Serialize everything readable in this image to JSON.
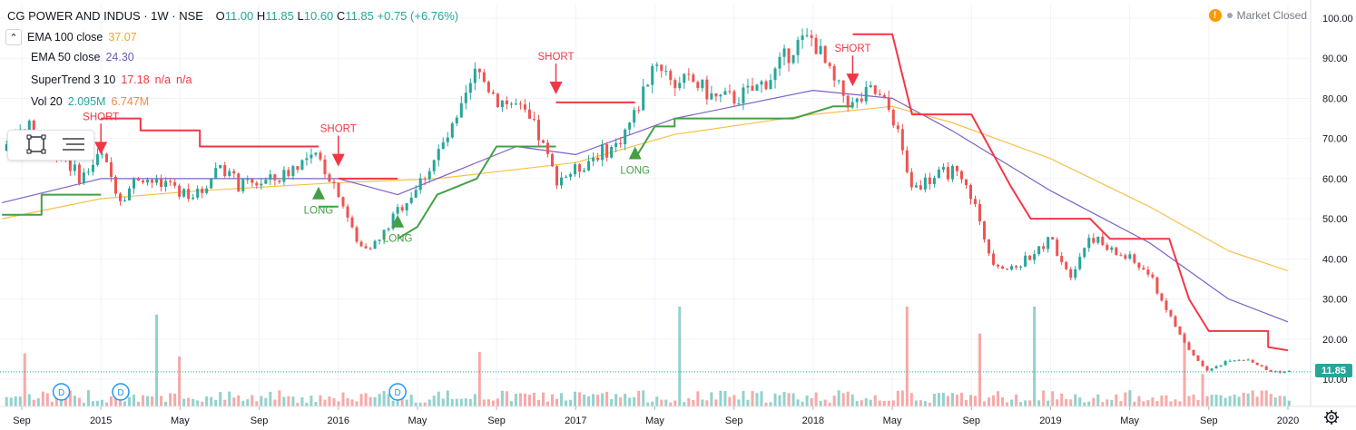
{
  "header": {
    "symbol": "CG POWER AND INDUS · 1W · NSE",
    "o_label": "O",
    "o": "11.00",
    "h_label": "H",
    "h": "11.85",
    "l_label": "L",
    "l": "10.60",
    "c_label": "C",
    "c": "11.85",
    "change": "+0.75 (+6.76%)"
  },
  "indicators": [
    {
      "name": "EMA 100 close",
      "values": [
        "37.07"
      ],
      "color": "#f5b731"
    },
    {
      "name": "EMA 50 close",
      "values": [
        "24.30"
      ],
      "color": "#6e5abf"
    },
    {
      "name": "SuperTrend 3 10",
      "values": [
        "17.18",
        "n/a",
        "n/a"
      ],
      "color": "#f23645"
    },
    {
      "name": "Vol 20",
      "values": [
        "2.095M",
        "6.747M"
      ],
      "color": "#26a69a",
      "color2": "#ef8b46"
    }
  ],
  "market_status": "Market Closed",
  "collapse_icon": "chevron-up-icon",
  "tool_icons": [
    "select-rectangle-icon",
    "object-tree-icon"
  ],
  "settings_icon": "gear-icon",
  "colors": {
    "up": "#26a69a",
    "down": "#ef5350",
    "st_up": "#43a047",
    "st_down": "#f23645",
    "ema100": "#f7c14a",
    "ema50": "#7b61c9"
  },
  "chart_data": {
    "type": "candlestick",
    "title": "",
    "last_price": "11.85",
    "y_ticks": [
      "10.00",
      "20.00",
      "30.00",
      "40.00",
      "50.00",
      "60.00",
      "70.00",
      "80.00",
      "90.00",
      "100.00"
    ],
    "ylim": [
      5,
      103
    ],
    "x_ticks": [
      "Sep",
      "2015",
      "May",
      "Sep",
      "2016",
      "May",
      "Sep",
      "2017",
      "May",
      "Sep",
      "2018",
      "May",
      "Sep",
      "2019",
      "May",
      "Sep",
      "2020"
    ],
    "xlim": [
      "2014-09",
      "2020-01"
    ],
    "close_series": [
      [
        "2014-08",
        67
      ],
      [
        "2014-09",
        74
      ],
      [
        "2014-10",
        70
      ],
      [
        "2014-11",
        66
      ],
      [
        "2014-12",
        60
      ],
      [
        "2015-01",
        66
      ],
      [
        "2015-02",
        55
      ],
      [
        "2015-03",
        61
      ],
      [
        "2015-04",
        58
      ],
      [
        "2015-05",
        57
      ],
      [
        "2015-06",
        56
      ],
      [
        "2015-07",
        64
      ],
      [
        "2015-08",
        58
      ],
      [
        "2015-09",
        59
      ],
      [
        "2015-10",
        60
      ],
      [
        "2015-11",
        64
      ],
      [
        "2015-12",
        65
      ],
      [
        "2016-01",
        57
      ],
      [
        "2016-02",
        43
      ],
      [
        "2016-03",
        44
      ],
      [
        "2016-04",
        52
      ],
      [
        "2016-05",
        58
      ],
      [
        "2016-06",
        66
      ],
      [
        "2016-07",
        74
      ],
      [
        "2016-08",
        87
      ],
      [
        "2016-09",
        80
      ],
      [
        "2016-10",
        78
      ],
      [
        "2016-11",
        72
      ],
      [
        "2016-12",
        60
      ],
      [
        "2017-01",
        62
      ],
      [
        "2017-02",
        66
      ],
      [
        "2017-03",
        68
      ],
      [
        "2017-04",
        76
      ],
      [
        "2017-05",
        90
      ],
      [
        "2017-06",
        84
      ],
      [
        "2017-07",
        84
      ],
      [
        "2017-08",
        80
      ],
      [
        "2017-09",
        80
      ],
      [
        "2017-10",
        82
      ],
      [
        "2017-11",
        86
      ],
      [
        "2017-12",
        93
      ],
      [
        "2018-01",
        95
      ],
      [
        "2018-02",
        84
      ],
      [
        "2018-03",
        78
      ],
      [
        "2018-04",
        82
      ],
      [
        "2018-05",
        76
      ],
      [
        "2018-06",
        58
      ],
      [
        "2018-07",
        60
      ],
      [
        "2018-08",
        62
      ],
      [
        "2018-09",
        56
      ],
      [
        "2018-10",
        40
      ],
      [
        "2018-11",
        37
      ],
      [
        "2018-12",
        41
      ],
      [
        "2019-01",
        45
      ],
      [
        "2019-02",
        36
      ],
      [
        "2019-03",
        46
      ],
      [
        "2019-04",
        42
      ],
      [
        "2019-05",
        40
      ],
      [
        "2019-06",
        36
      ],
      [
        "2019-07",
        26
      ],
      [
        "2019-08",
        17
      ],
      [
        "2019-09",
        12
      ],
      [
        "2019-10",
        15
      ],
      [
        "2019-11",
        15
      ],
      [
        "2019-12",
        12
      ],
      [
        "2020-01",
        11.85
      ]
    ],
    "ema100_series": [
      [
        "2014-08",
        50
      ],
      [
        "2015-01",
        55
      ],
      [
        "2015-06",
        57
      ],
      [
        "2016-01",
        59
      ],
      [
        "2016-06",
        60
      ],
      [
        "2017-01",
        64
      ],
      [
        "2017-06",
        71
      ],
      [
        "2018-01",
        76
      ],
      [
        "2018-05",
        78
      ],
      [
        "2018-08",
        74
      ],
      [
        "2019-01",
        65
      ],
      [
        "2019-06",
        53
      ],
      [
        "2019-10",
        42
      ],
      [
        "2020-01",
        37
      ]
    ],
    "ema50_series": [
      [
        "2014-08",
        54
      ],
      [
        "2015-01",
        60
      ],
      [
        "2015-07",
        60
      ],
      [
        "2016-01",
        60
      ],
      [
        "2016-04",
        56
      ],
      [
        "2016-10",
        68
      ],
      [
        "2017-01",
        66
      ],
      [
        "2017-06",
        75
      ],
      [
        "2018-01",
        82
      ],
      [
        "2018-05",
        80
      ],
      [
        "2018-08",
        72
      ],
      [
        "2019-01",
        57
      ],
      [
        "2019-06",
        44
      ],
      [
        "2019-10",
        30
      ],
      [
        "2020-01",
        24.3
      ]
    ],
    "supertrend_segments": [
      {
        "trend": "up",
        "points": [
          [
            "2014-08",
            51
          ],
          [
            "2014-10",
            51
          ],
          [
            "2014-10",
            56
          ],
          [
            "2015-01",
            56
          ]
        ]
      },
      {
        "trend": "down",
        "points": [
          [
            "2015-01",
            75
          ],
          [
            "2015-03",
            75
          ],
          [
            "2015-03",
            72
          ],
          [
            "2015-06",
            72
          ],
          [
            "2015-06",
            68
          ],
          [
            "2015-12",
            68
          ]
        ]
      },
      {
        "trend": "up",
        "points": [
          [
            "2015-12",
            53
          ],
          [
            "2016-01",
            53
          ]
        ]
      },
      {
        "trend": "down",
        "points": [
          [
            "2016-01",
            60
          ],
          [
            "2016-04",
            60
          ]
        ]
      },
      {
        "trend": "up",
        "points": [
          [
            "2016-04",
            45
          ],
          [
            "2016-05",
            48
          ],
          [
            "2016-06",
            56
          ],
          [
            "2016-08",
            60
          ],
          [
            "2016-09",
            68
          ],
          [
            "2016-12",
            68
          ]
        ]
      },
      {
        "trend": "down",
        "points": [
          [
            "2016-12",
            79
          ],
          [
            "2017-04",
            79
          ]
        ]
      },
      {
        "trend": "up",
        "points": [
          [
            "2017-04",
            65
          ],
          [
            "2017-05",
            73
          ],
          [
            "2017-06",
            73
          ],
          [
            "2017-06",
            75
          ],
          [
            "2017-12",
            75
          ],
          [
            "2018-02",
            78
          ],
          [
            "2018-03",
            78
          ]
        ]
      },
      {
        "trend": "down",
        "points": [
          [
            "2018-03",
            96
          ],
          [
            "2018-05",
            96
          ],
          [
            "2018-06",
            76
          ],
          [
            "2018-09",
            76
          ],
          [
            "2018-11",
            58
          ],
          [
            "2018-12",
            50
          ],
          [
            "2019-03",
            50
          ],
          [
            "2019-04",
            45
          ],
          [
            "2019-07",
            45
          ],
          [
            "2019-08",
            30
          ],
          [
            "2019-09",
            22
          ],
          [
            "2019-12",
            22
          ],
          [
            "2019-12",
            18
          ],
          [
            "2020-01",
            17.18
          ]
        ]
      }
    ],
    "signals": [
      {
        "type": "short",
        "label": "SHORT",
        "date": "2015-01",
        "price": 66
      },
      {
        "type": "long",
        "label": "LONG",
        "date": "2015-12",
        "price": 58
      },
      {
        "type": "short",
        "label": "SHORT",
        "date": "2016-01",
        "price": 63
      },
      {
        "type": "long",
        "label": "LONG",
        "date": "2016-04",
        "price": 51
      },
      {
        "type": "short",
        "label": "SHORT",
        "date": "2016-12",
        "price": 81
      },
      {
        "type": "long",
        "label": "LONG",
        "date": "2017-04",
        "price": 68
      },
      {
        "type": "short",
        "label": "SHORT",
        "date": "2018-03",
        "price": 83
      }
    ],
    "dividend_markers": [
      {
        "label": "D",
        "date": "2014-11"
      },
      {
        "label": "D",
        "date": "2015-02"
      },
      {
        "label": "D",
        "date": "2016-04"
      }
    ]
  }
}
